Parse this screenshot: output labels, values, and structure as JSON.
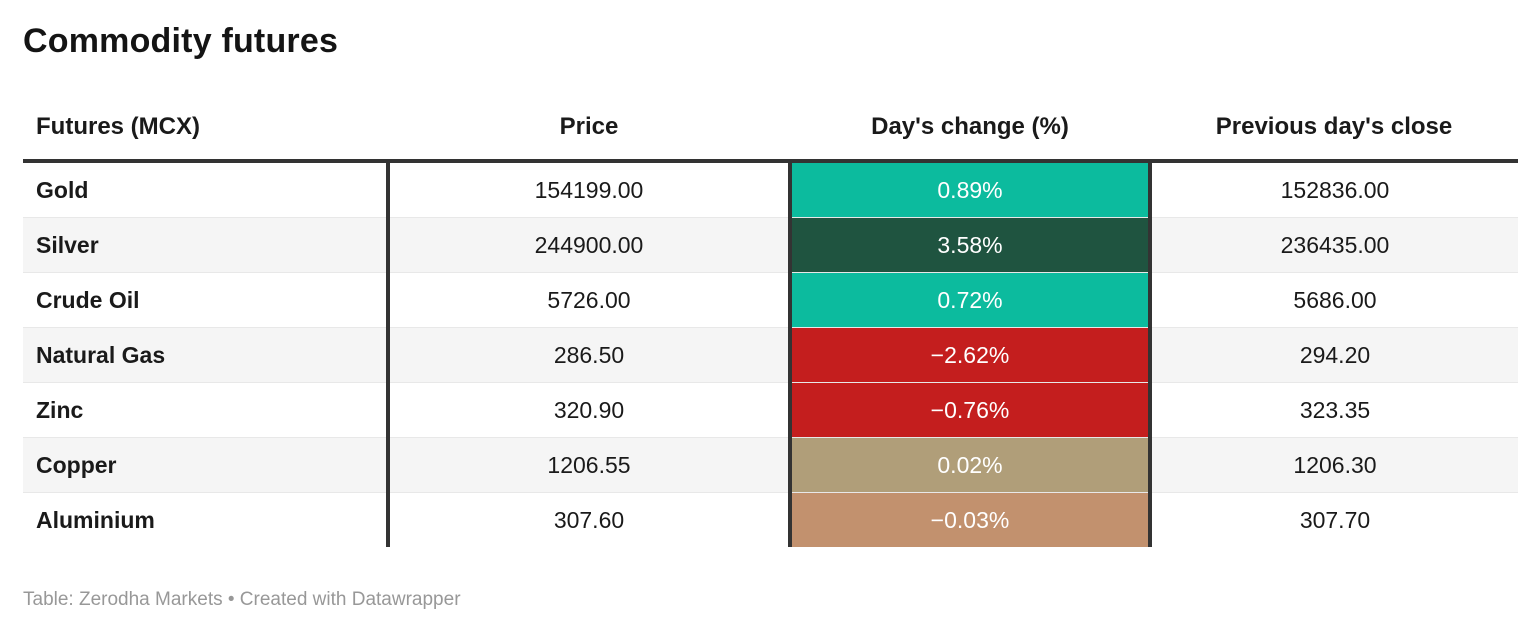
{
  "title": "Commodity futures",
  "table": {
    "columns": [
      "Futures (MCX)",
      "Price",
      "Day's change (%)",
      "Previous day's close"
    ],
    "rows": [
      {
        "name": "Gold",
        "price": "154199.00",
        "change": "0.89%",
        "change_bg": "#0cbb9e",
        "prev_close": "152836.00"
      },
      {
        "name": "Silver",
        "price": "244900.00",
        "change": "3.58%",
        "change_bg": "#1f5440",
        "prev_close": "236435.00"
      },
      {
        "name": "Crude Oil",
        "price": "5726.00",
        "change": "0.72%",
        "change_bg": "#0cbb9e",
        "prev_close": "5686.00"
      },
      {
        "name": "Natural Gas",
        "price": "286.50",
        "change": "−2.62%",
        "change_bg": "#c41e1e",
        "prev_close": "294.20"
      },
      {
        "name": "Zinc",
        "price": "320.90",
        "change": "−0.76%",
        "change_bg": "#c41e1e",
        "prev_close": "323.35"
      },
      {
        "name": "Copper",
        "price": "1206.55",
        "change": "0.02%",
        "change_bg": "#b09e79",
        "prev_close": "1206.30"
      },
      {
        "name": "Aluminium",
        "price": "307.60",
        "change": "−0.03%",
        "change_bg": "#c2916e",
        "prev_close": "307.70"
      }
    ]
  },
  "footer": "Table: Zerodha Markets • Created with Datawrapper",
  "colors": {
    "positive": "#0cbb9e",
    "strong_positive": "#1f5440",
    "negative": "#c41e1e",
    "near_zero_positive": "#b09e79",
    "near_zero_negative": "#c2916e",
    "rule": "#333333",
    "row_alt": "#f5f5f5"
  },
  "chart_data": {
    "type": "table",
    "title": "Commodity futures",
    "columns": [
      "Futures (MCX)",
      "Price",
      "Day's change (%)",
      "Previous day's close"
    ],
    "categories": [
      "Gold",
      "Silver",
      "Crude Oil",
      "Natural Gas",
      "Zinc",
      "Copper",
      "Aluminium"
    ],
    "series": [
      {
        "name": "Price",
        "values": [
          154199.0,
          244900.0,
          5726.0,
          286.5,
          320.9,
          1206.55,
          307.6
        ]
      },
      {
        "name": "Day's change (%)",
        "values": [
          0.89,
          3.58,
          0.72,
          -2.62,
          -0.76,
          0.02,
          -0.03
        ]
      },
      {
        "name": "Previous day's close",
        "values": [
          152836.0,
          236435.0,
          5686.0,
          294.2,
          323.35,
          1206.3,
          307.7
        ]
      }
    ],
    "notes": "Day's change cells are color-coded: teal = positive, dark green = strongly positive, red = negative, tan = near zero"
  }
}
